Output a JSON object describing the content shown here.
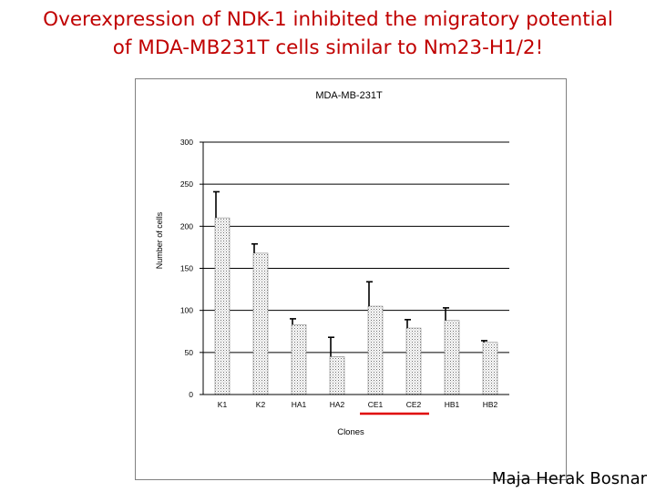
{
  "slide": {
    "title_line1": "Overexpression of NDK-1 inhibited the migratory potential",
    "title_line2": "of MDA-MB231T cells similar to Nm23-H1/2!",
    "author": "Maja Herak Bosnar",
    "title_color": "#c00000"
  },
  "chart_data": {
    "type": "bar",
    "title": "MDA-MB-231T",
    "xlabel": "Clones",
    "ylabel": "Number of cells",
    "categories": [
      "K1",
      "K2",
      "HA1",
      "HA2",
      "CE1",
      "CE2",
      "HB1",
      "HB2"
    ],
    "values": [
      210,
      168,
      83,
      45,
      105,
      79,
      88,
      62
    ],
    "errors": [
      31,
      11,
      7,
      23,
      29,
      10,
      15,
      2
    ],
    "ylim": [
      0,
      300
    ],
    "yticks": [
      0,
      50,
      100,
      150,
      200,
      250,
      300
    ],
    "grid": true,
    "legend": "none",
    "highlight_categories": [
      "CE1",
      "CE2"
    ],
    "highlight_color": "#e00000",
    "bar_fill": "dotted-gray"
  }
}
